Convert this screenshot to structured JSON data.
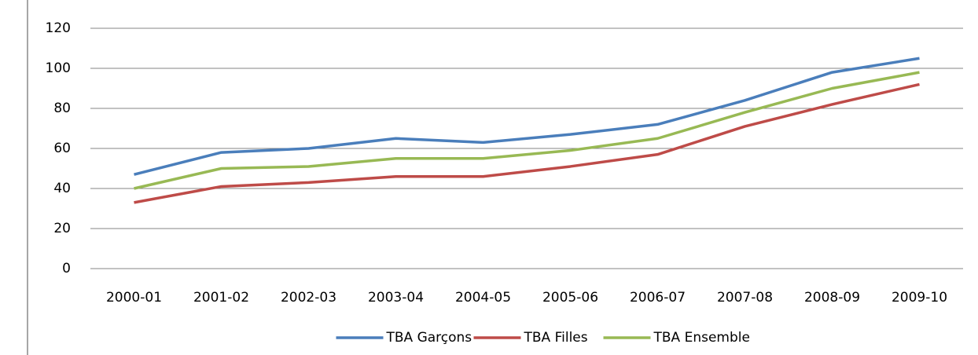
{
  "chart_data": {
    "type": "line",
    "categories": [
      "2000-01",
      "2001-02",
      "2002-03",
      "2003-04",
      "2004-05",
      "2005-06",
      "2006-07",
      "2007-08",
      "2008-09",
      "2009-10"
    ],
    "series": [
      {
        "name": "TBA Garçons",
        "color": "#4a7ebb",
        "values": [
          47,
          58,
          60,
          65,
          63,
          67,
          72,
          84,
          98,
          105
        ]
      },
      {
        "name": "TBA Filles",
        "color": "#be4b48",
        "values": [
          33,
          41,
          43,
          46,
          46,
          51,
          57,
          71,
          82,
          92
        ]
      },
      {
        "name": "TBA Ensemble",
        "color": "#98b954",
        "values": [
          40,
          50,
          51,
          55,
          55,
          59,
          65,
          78,
          90,
          98
        ]
      }
    ],
    "ylim": [
      0,
      120
    ],
    "yticks": [
      0,
      20,
      40,
      60,
      80,
      100,
      120
    ],
    "grid": true,
    "legend": "bottom"
  }
}
